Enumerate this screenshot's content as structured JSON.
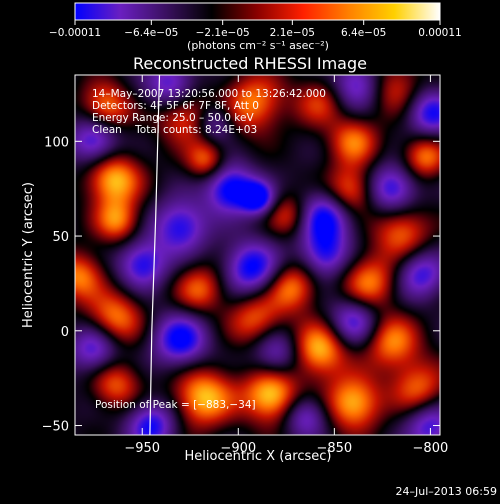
{
  "chart_data": {
    "type": "heatmap",
    "title": "Reconstructed RHESSI Image",
    "xlabel": "Heliocentric X (arcsec)",
    "ylabel": "Heliocentric Y (arcsec)",
    "xlim": [
      -985,
      -795
    ],
    "ylim": [
      -55,
      135
    ],
    "x_ticks": [
      {
        "value": -950,
        "label": "−950"
      },
      {
        "value": -900,
        "label": "−900"
      },
      {
        "value": -850,
        "label": "−850"
      },
      {
        "value": -800,
        "label": "−800"
      }
    ],
    "y_ticks": [
      {
        "value": 100,
        "label": "100"
      },
      {
        "value": 50,
        "label": "50"
      },
      {
        "value": 0,
        "label": "0"
      },
      {
        "value": -50,
        "label": "−50"
      }
    ],
    "colorbar": {
      "range": [
        -0.00011,
        0.00011
      ],
      "tick_values": [
        -0.00011,
        -6.4e-05,
        -2.1e-05,
        2.1e-05,
        6.4e-05,
        0.00011
      ],
      "tick_labels": [
        "−0.00011",
        "−6.4e−05",
        "−2.1e−05",
        "2.1e−05",
        "6.4e−05",
        "0.00011"
      ],
      "units": "(photons cm⁻² s⁻¹ asec⁻²)",
      "colors": [
        "#0000ff",
        "#6a1fc0",
        "#3a1060",
        "#000000",
        "#8b0000",
        "#ff2000",
        "#ff8000",
        "#ffd000",
        "#ffffff"
      ]
    },
    "annotations": {
      "time_range": "14–May–2007 13:20:56.000 to 13:26:42.000",
      "detectors": "Detectors: 4F 5F 6F 7F 8F, Att 0",
      "energy_range": "Energy Range: 25.0 – 50.0 keV",
      "method_counts": "Clean    Total counts: 8.24E+03",
      "peak": "Position of Peak = [−883,−34]"
    },
    "limb_arc": [
      {
        "x": -946,
        "y": -55
      },
      {
        "x": -945,
        "y": 0
      },
      {
        "x": -943,
        "y": 60
      },
      {
        "x": -941,
        "y": 135
      }
    ],
    "blobs": [
      {
        "x": -969,
        "y": 118,
        "v": 8e-05,
        "w": 9
      },
      {
        "x": -928,
        "y": 113,
        "v": 7e-05,
        "w": 10
      },
      {
        "x": -892,
        "y": 120,
        "v": 8e-05,
        "w": 11
      },
      {
        "x": -858,
        "y": 121,
        "v": 5.5e-05,
        "w": 9
      },
      {
        "x": -818,
        "y": 128,
        "v": 6e-05,
        "w": 10
      },
      {
        "x": -965,
        "y": 80,
        "v": 0.0001,
        "w": 10
      },
      {
        "x": -917,
        "y": 90,
        "v": 7e-05,
        "w": 7
      },
      {
        "x": -840,
        "y": 100,
        "v": 7.5e-05,
        "w": 9
      },
      {
        "x": -803,
        "y": 92,
        "v": 8e-05,
        "w": 8
      },
      {
        "x": -963,
        "y": 58,
        "v": 8e-05,
        "w": 8
      },
      {
        "x": -873,
        "y": 61,
        "v": 6e-05,
        "w": 8
      },
      {
        "x": -842,
        "y": 74,
        "v": 8e-05,
        "w": 9
      },
      {
        "x": -815,
        "y": 52,
        "v": 7.5e-05,
        "w": 10
      },
      {
        "x": -983,
        "y": 29,
        "v": 8e-05,
        "w": 9
      },
      {
        "x": -920,
        "y": 22,
        "v": 7e-05,
        "w": 9
      },
      {
        "x": -872,
        "y": 23,
        "v": 8e-05,
        "w": 9
      },
      {
        "x": -832,
        "y": 26,
        "v": 8e-05,
        "w": 10
      },
      {
        "x": -964,
        "y": 7,
        "v": 8e-05,
        "w": 10
      },
      {
        "x": -891,
        "y": 6,
        "v": 7e-05,
        "w": 10
      },
      {
        "x": -858,
        "y": -10,
        "v": 0.0001,
        "w": 10
      },
      {
        "x": -820,
        "y": -6,
        "v": 8e-05,
        "w": 10
      },
      {
        "x": -964,
        "y": -28,
        "v": 7e-05,
        "w": 9
      },
      {
        "x": -918,
        "y": -35,
        "v": 0.0001,
        "w": 11
      },
      {
        "x": -883,
        "y": -34,
        "v": 0.00011,
        "w": 10
      },
      {
        "x": -840,
        "y": -38,
        "v": 0.0001,
        "w": 10
      },
      {
        "x": -806,
        "y": -30,
        "v": 7e-05,
        "w": 10
      },
      {
        "x": -838,
        "y": 130,
        "v": -8e-05,
        "w": 9
      },
      {
        "x": -904,
        "y": 75,
        "v": -0.00011,
        "w": 9
      },
      {
        "x": -890,
        "y": 70,
        "v": -0.00011,
        "w": 6
      },
      {
        "x": -855,
        "y": 60,
        "v": -0.0001,
        "w": 10
      },
      {
        "x": -930,
        "y": 55,
        "v": -9e-05,
        "w": 10
      },
      {
        "x": -975,
        "y": 100,
        "v": -9e-05,
        "w": 9
      },
      {
        "x": -935,
        "y": 130,
        "v": -8e-05,
        "w": 9
      },
      {
        "x": -800,
        "y": 115,
        "v": -9e-05,
        "w": 9
      },
      {
        "x": -893,
        "y": 33,
        "v": -0.0001,
        "w": 10
      },
      {
        "x": -950,
        "y": 35,
        "v": -9e-05,
        "w": 9
      },
      {
        "x": -820,
        "y": 75,
        "v": -9e-05,
        "w": 9
      },
      {
        "x": -855,
        "y": 40,
        "v": -8e-05,
        "w": 9
      },
      {
        "x": -930,
        "y": -5,
        "v": -0.0001,
        "w": 10
      },
      {
        "x": -975,
        "y": -10,
        "v": -8e-05,
        "w": 9
      },
      {
        "x": -880,
        "y": -12,
        "v": -7e-05,
        "w": 9
      },
      {
        "x": -840,
        "y": 5,
        "v": -8e-05,
        "w": 9
      },
      {
        "x": -805,
        "y": 30,
        "v": -8e-05,
        "w": 9
      },
      {
        "x": -945,
        "y": -50,
        "v": -9e-05,
        "w": 9
      },
      {
        "x": -865,
        "y": -45,
        "v": -7e-05,
        "w": 8
      },
      {
        "x": -800,
        "y": -50,
        "v": -8e-05,
        "w": 9
      },
      {
        "x": -912,
        "y": 110,
        "v": -6e-05,
        "w": 7
      }
    ]
  },
  "footer": {
    "timestamp": "24–Jul–2013 06:59"
  }
}
